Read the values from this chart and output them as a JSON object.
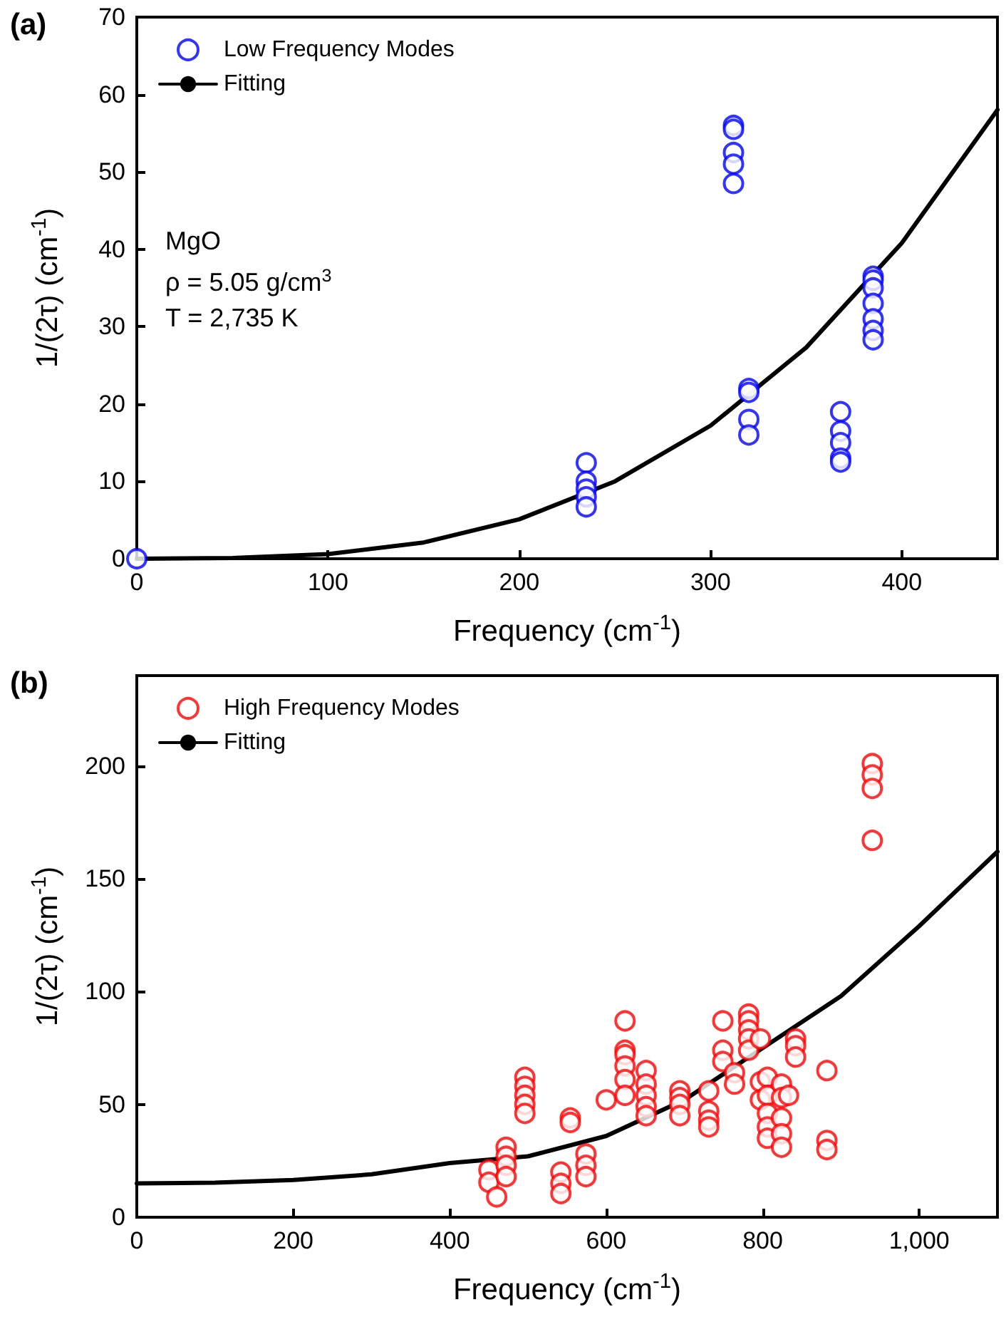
{
  "chart_data": [
    {
      "type": "scatter",
      "title": "(a)",
      "xlabel": "Frequency (cm$^{-1}$)",
      "ylabel": "1/(2τ) (cm$^{-1}$)",
      "annotations": [
        "MgO",
        "ρ = 5.05 g/cm$^{3}$",
        "T = 2,735 K"
      ],
      "xlim": [
        0,
        450
      ],
      "xticks": [
        0,
        100,
        200,
        300,
        400
      ],
      "ylim": [
        0,
        70
      ],
      "yticks": [
        0,
        10,
        20,
        30,
        40,
        50,
        60,
        70
      ],
      "grid": false,
      "legend": "top left",
      "marker": "circle",
      "series": [
        {
          "name": "Low Frequency Modes",
          "color": "#0000ff",
          "x": [
            0,
            235,
            235,
            235,
            235,
            235,
            312,
            312,
            312,
            312,
            312,
            320,
            320,
            320,
            320,
            368,
            368,
            368,
            368,
            368,
            385,
            385,
            385,
            385,
            385,
            385,
            385
          ],
          "values": [
            0,
            12.4,
            10,
            9,
            8,
            6.7,
            56,
            55.5,
            52.5,
            51,
            48.5,
            22,
            21.5,
            18,
            16,
            19,
            16.5,
            15,
            13,
            12.5,
            36.5,
            36,
            35,
            33,
            31,
            29.5,
            28.3
          ]
        },
        {
          "name": "Fitting",
          "type": "line",
          "color": "#000000",
          "marker": "none",
          "line_style": "solid",
          "x": [
            0,
            50,
            100,
            150,
            200,
            250,
            300,
            350,
            400,
            450
          ],
          "values": [
            0,
            0.1,
            0.6,
            2.1,
            5.1,
            10,
            17.2,
            27.3,
            40.8,
            58
          ]
        }
      ]
    },
    {
      "type": "scatter",
      "title": "(b)",
      "xlabel": "Frequency (cm$^{-1}$)",
      "ylabel": "1/(2τ) (cm$^{-1}$)",
      "xlim": [
        0,
        1100
      ],
      "xticks": [
        0,
        200,
        400,
        600,
        800,
        {
          "value": 1000,
          "label": "1,000"
        }
      ],
      "ylim": [
        0,
        240
      ],
      "yticks": [
        0,
        50,
        100,
        150,
        200
      ],
      "grid": false,
      "legend": "top left",
      "marker": "circle",
      "series": [
        {
          "name": "High Frequency Modes",
          "color": "#ff0000",
          "x": [
            450,
            450,
            460,
            472,
            472,
            472,
            472,
            496,
            496,
            496,
            496,
            496,
            542,
            542,
            542,
            554,
            554,
            574,
            574,
            574,
            600,
            624,
            624,
            624,
            624,
            624,
            624,
            651,
            651,
            651,
            651,
            651,
            694,
            694,
            694,
            694,
            731,
            731,
            731,
            731,
            749,
            749,
            749,
            764,
            764,
            782,
            782,
            782,
            782,
            782,
            797,
            797,
            797,
            806,
            806,
            806,
            806,
            806,
            824,
            824,
            824,
            824,
            824,
            833,
            842,
            842,
            842,
            882,
            882,
            882,
            940,
            940,
            940,
            940
          ],
          "values": [
            21,
            15.5,
            9,
            31,
            27,
            23,
            18,
            62,
            58,
            54,
            50,
            46,
            20,
            15,
            10.5,
            44,
            42,
            28,
            23,
            18,
            52,
            87,
            74,
            72,
            67,
            61,
            54,
            65,
            59,
            54,
            49,
            45,
            56,
            53,
            50,
            45,
            56,
            47,
            43,
            40,
            87,
            74,
            69,
            64,
            59,
            90,
            87,
            83,
            79,
            74,
            79,
            60,
            52,
            62,
            54,
            46,
            40,
            35,
            59,
            53,
            44,
            37,
            31,
            54,
            79,
            76,
            71,
            65,
            34,
            30,
            201,
            196,
            190,
            167
          ]
        },
        {
          "name": "Fitting",
          "type": "line",
          "color": "#000000",
          "marker": "none",
          "line_style": "solid",
          "x": [
            0,
            100,
            200,
            300,
            400,
            500,
            600,
            700,
            800,
            900,
            1000,
            1100
          ],
          "values": [
            15,
            15.3,
            16.5,
            19,
            24,
            27,
            36,
            52,
            75,
            98,
            129,
            162
          ]
        }
      ]
    }
  ]
}
